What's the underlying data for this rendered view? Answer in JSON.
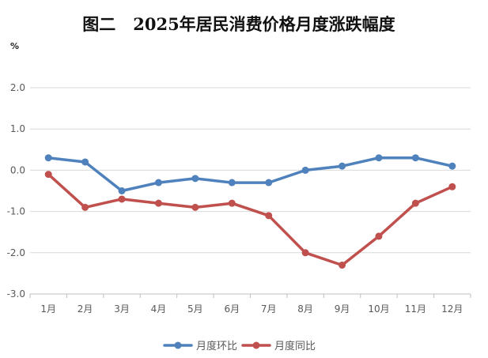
{
  "chart_data": {
    "type": "line",
    "title": "图二   2025年居民消费价格月度涨跌幅度",
    "unit": "%",
    "categories": [
      "1月",
      "2月",
      "3月",
      "4月",
      "5月",
      "6月",
      "7月",
      "8月",
      "9月",
      "10月",
      "11月",
      "12月"
    ],
    "ylim": [
      -3.0,
      2.0
    ],
    "yticks": [
      2.0,
      1.0,
      0.0,
      -1.0,
      -2.0,
      -3.0
    ],
    "ytick_labels": [
      "2.0",
      "1.0",
      "0.0",
      "-1.0",
      "-2.0",
      "-3.0"
    ],
    "grid": true,
    "legend_position": "bottom",
    "series": [
      {
        "name": "月度环比",
        "color": "#4f81bd",
        "values": [
          0.3,
          0.2,
          -0.5,
          -0.3,
          -0.2,
          -0.3,
          -0.3,
          0.0,
          0.1,
          0.3,
          0.3,
          0.1
        ]
      },
      {
        "name": "月度同比",
        "color": "#c0504d",
        "values": [
          -0.1,
          -0.9,
          -0.7,
          -0.8,
          -0.9,
          -0.8,
          -1.1,
          -2.0,
          -2.3,
          -1.6,
          -0.8,
          -0.4
        ]
      }
    ]
  }
}
